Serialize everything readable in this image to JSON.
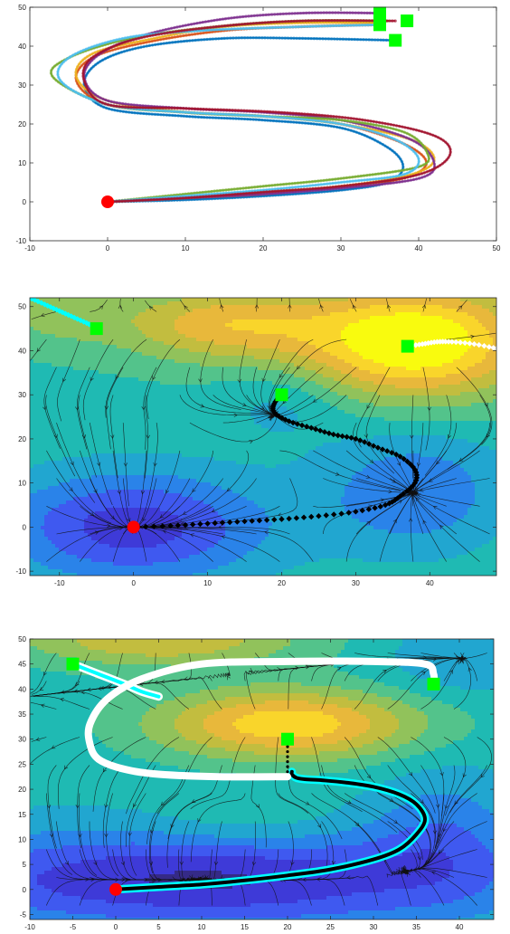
{
  "chart_data": [
    {
      "type": "line",
      "xlim": [
        -10,
        50
      ],
      "ylim": [
        -10,
        50
      ],
      "xticks": [
        -10,
        0,
        10,
        20,
        30,
        40,
        50
      ],
      "yticks": [
        -10,
        0,
        10,
        20,
        30,
        40,
        50
      ],
      "grid": false,
      "start_marker": {
        "x": 0,
        "y": 0,
        "color": "#ff0000"
      },
      "goal_markers": [
        {
          "x": 35,
          "y": 48.5
        },
        {
          "x": 38.5,
          "y": 46.5
        },
        {
          "x": 35,
          "y": 45.5
        },
        {
          "x": 37,
          "y": 41.5
        }
      ],
      "series": [
        {
          "color": "#0072bd",
          "x": [
            0,
            10,
            20,
            30,
            36,
            38,
            36,
            30,
            20,
            10,
            0,
            -3,
            -1,
            5,
            15,
            25,
            37
          ],
          "y": [
            0,
            0.5,
            1.5,
            3,
            5,
            9,
            14,
            19,
            21,
            22,
            24,
            30,
            36,
            40,
            42,
            42,
            41.5
          ]
        },
        {
          "color": "#d95319",
          "x": [
            0,
            10,
            20,
            30,
            38,
            41,
            38,
            30,
            20,
            10,
            0,
            -4,
            -2,
            5,
            15,
            25,
            35
          ],
          "y": [
            0,
            1,
            2,
            4,
            6,
            10,
            15,
            20,
            22,
            23,
            25,
            31,
            37,
            41,
            44,
            45,
            45.5
          ]
        },
        {
          "color": "#edb120",
          "x": [
            0,
            10,
            20,
            30,
            39,
            42,
            39,
            30,
            20,
            10,
            0,
            -4,
            -2,
            6,
            15,
            25,
            35
          ],
          "y": [
            0,
            1,
            2.5,
            4,
            7,
            11,
            16,
            20,
            22,
            23,
            26,
            32,
            38,
            42,
            45,
            46,
            46
          ]
        },
        {
          "color": "#7e2f8e",
          "x": [
            0,
            10,
            20,
            30,
            40,
            42,
            39,
            30,
            20,
            10,
            0,
            -3,
            -1,
            5,
            15,
            25,
            35
          ],
          "y": [
            0,
            1,
            2,
            3.5,
            6,
            10,
            16,
            21,
            23,
            24,
            26,
            32,
            38,
            43,
            47,
            48.5,
            48.5
          ]
        },
        {
          "color": "#77ac30",
          "x": [
            0,
            10,
            20,
            30,
            40,
            41,
            38,
            30,
            20,
            10,
            0,
            -7,
            -5,
            3,
            14,
            25,
            36
          ],
          "y": [
            0,
            2,
            4,
            6,
            9,
            13,
            18,
            21,
            22,
            23,
            25,
            32,
            37,
            42,
            45,
            46.5,
            46.5
          ]
        },
        {
          "color": "#4dbeee",
          "x": [
            0,
            10,
            20,
            30,
            38,
            40,
            37,
            30,
            20,
            10,
            0,
            -6,
            -5,
            2,
            12,
            25,
            35
          ],
          "y": [
            0,
            1.5,
            3,
            5,
            7,
            11,
            16,
            20,
            22,
            23,
            25,
            31,
            37,
            42,
            44,
            45,
            45.5
          ]
        },
        {
          "color": "#a2142f",
          "x": [
            0,
            10,
            20,
            30,
            40,
            44,
            42,
            33,
            22,
            10,
            0,
            -3,
            -2,
            4,
            14,
            25,
            37
          ],
          "y": [
            0,
            1,
            2.5,
            4,
            7,
            12,
            17,
            21,
            23,
            24,
            25,
            31,
            37,
            42,
            45,
            46.5,
            46.5
          ]
        }
      ]
    },
    {
      "type": "heatmap",
      "xlim": [
        -14,
        49
      ],
      "ylim": [
        -11,
        52
      ],
      "xticks": [
        -10,
        0,
        10,
        20,
        30,
        40
      ],
      "yticks": [
        -10,
        0,
        10,
        20,
        30,
        40,
        50
      ],
      "colormap": [
        "#352a87",
        "#3e3ad8",
        "#3f59f0",
        "#2a83e9",
        "#21a6d0",
        "#1fbab3",
        "#53c38b",
        "#91c25b",
        "#c2bd3f",
        "#e8b83b",
        "#f9d52b",
        "#f9fb0e"
      ],
      "field": {
        "base": 0.48,
        "wells": [
          {
            "x": 0,
            "y": 0,
            "amp": -0.36,
            "sx": 13,
            "sy": 9
          },
          {
            "x": 38,
            "y": 42,
            "amp": 0.55,
            "sx": 11,
            "sy": 9
          },
          {
            "x": 12,
            "y": 46,
            "amp": 0.32,
            "sx": 10,
            "sy": 6
          },
          {
            "x": -10,
            "y": 50,
            "amp": 0.15,
            "sx": 6,
            "sy": 6
          },
          {
            "x": 38,
            "y": 8,
            "amp": -0.22,
            "sx": 9,
            "sy": 10
          },
          {
            "x": 20,
            "y": 28,
            "amp": -0.1,
            "sx": 6,
            "sy": 6
          }
        ]
      },
      "start_marker": {
        "x": 0,
        "y": 0,
        "color": "#ff0000"
      },
      "goal_markers": [
        {
          "x": 20,
          "y": 30,
          "color": "#00ff00"
        },
        {
          "x": -5,
          "y": 45,
          "color": "#00ff00"
        },
        {
          "x": 37,
          "y": 41,
          "color": "#00ff00"
        }
      ],
      "trajectories": [
        {
          "color": "#000000",
          "marker": "diamond",
          "x": [
            0,
            5,
            10,
            15,
            20,
            25,
            30,
            34,
            36,
            38,
            38,
            36,
            33,
            30,
            27,
            24,
            21,
            19,
            19,
            20
          ],
          "y": [
            0,
            0.3,
            0.8,
            1.3,
            1.8,
            2.5,
            3.5,
            5,
            7,
            10,
            13,
            16,
            18,
            20,
            21,
            22.5,
            24,
            26,
            28,
            30
          ]
        },
        {
          "color": "#00ffff",
          "marker": "diamond",
          "x": [
            -14,
            -12,
            -10,
            -8,
            -6,
            -5
          ],
          "y": [
            52,
            50.5,
            49,
            47.5,
            46,
            45
          ]
        },
        {
          "color": "#ffffff",
          "marker": "diamond",
          "x": [
            49,
            46,
            43,
            41,
            39,
            37
          ],
          "y": [
            40.5,
            41.5,
            42,
            42,
            41.5,
            41
          ]
        }
      ]
    },
    {
      "type": "heatmap",
      "xlim": [
        -10,
        44
      ],
      "ylim": [
        -6,
        50
      ],
      "xticks": [
        -10,
        -5,
        0,
        5,
        10,
        15,
        20,
        25,
        30,
        35,
        40
      ],
      "yticks": [
        -5,
        0,
        5,
        10,
        15,
        20,
        25,
        30,
        35,
        40,
        45,
        50
      ],
      "colormap": [
        "#352a87",
        "#3e3ad8",
        "#3f59f0",
        "#2a83e9",
        "#21a6d0",
        "#1fbab3",
        "#53c38b",
        "#91c25b",
        "#c2bd3f",
        "#e8b83b",
        "#f9d52b",
        "#f9fb0e"
      ],
      "field": {
        "base": 0.45,
        "wells": [
          {
            "x": 20,
            "y": 33,
            "amp": 0.45,
            "sx": 11,
            "sy": 5
          },
          {
            "x": 5,
            "y": 50,
            "amp": 0.3,
            "sx": 12,
            "sy": 4
          },
          {
            "x": 10,
            "y": 2,
            "amp": -0.38,
            "sx": 25,
            "sy": 7
          },
          {
            "x": 38,
            "y": 12,
            "amp": -0.15,
            "sx": 6,
            "sy": 9
          },
          {
            "x": 15,
            "y": 13,
            "amp": 0.08,
            "sx": 8,
            "sy": 4
          },
          {
            "x": 40,
            "y": 46,
            "amp": -0.12,
            "sx": 6,
            "sy": 5
          }
        ]
      },
      "start_marker": {
        "x": 0,
        "y": 0,
        "color": "#ff0000"
      },
      "goal_markers": [
        {
          "x": 20,
          "y": 30,
          "color": "#00ff00"
        },
        {
          "x": -5,
          "y": 45,
          "color": "#00ff00"
        },
        {
          "x": 37,
          "y": 41,
          "color": "#00ff00"
        }
      ],
      "trajectories": [
        {
          "color": "#000000",
          "outline": "#00ffff",
          "x": [
            0,
            5,
            10,
            15,
            20,
            25,
            30,
            33,
            35,
            36,
            35,
            33,
            30,
            27,
            24,
            22,
            21,
            20.5,
            20.5
          ],
          "y": [
            0,
            0.5,
            1,
            1.8,
            2.8,
            4,
            6,
            8,
            11,
            14,
            17,
            19,
            20.5,
            21.3,
            21.8,
            22,
            22.3,
            23,
            23.5
          ]
        },
        {
          "color": "#000000",
          "marker": "dot",
          "x": [
            20,
            20,
            20,
            20,
            20,
            20,
            20
          ],
          "y": [
            23.5,
            24.5,
            25.5,
            26.5,
            27.5,
            28.5,
            29.5
          ]
        },
        {
          "color": "#00ffff",
          "outline": "#ffffff",
          "x": [
            -5,
            -2,
            1,
            3,
            5
          ],
          "y": [
            45,
            43,
            41,
            39.5,
            38.5
          ]
        },
        {
          "color": "#ffffff",
          "x": [
            37,
            37,
            36,
            30,
            20,
            10,
            3,
            -1,
            -3,
            -3,
            -2,
            1,
            5,
            12,
            20
          ],
          "y": [
            41,
            43,
            45,
            45.5,
            45.5,
            45,
            42,
            38,
            33,
            29,
            26,
            24,
            23,
            22.5,
            22.5
          ]
        }
      ]
    }
  ]
}
